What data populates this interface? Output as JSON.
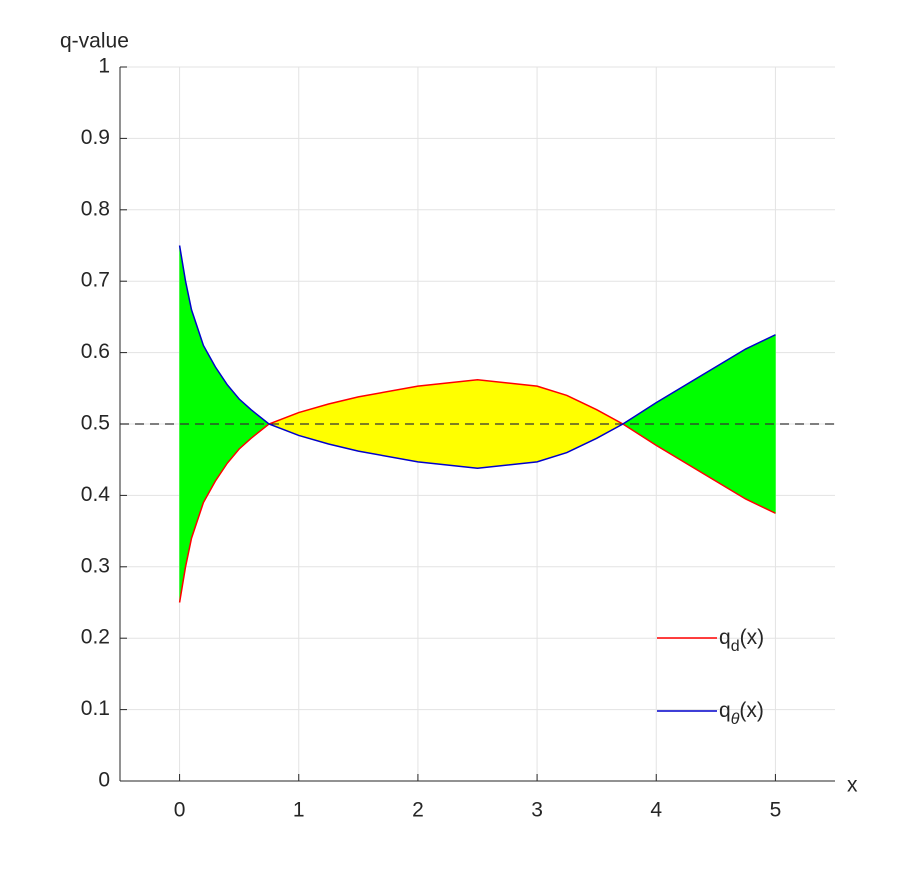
{
  "chart_data": {
    "type": "line",
    "xlabel": "x",
    "ylabel": "q-value",
    "x": [
      0,
      0.05,
      0.1,
      0.2,
      0.3,
      0.4,
      0.5,
      0.6,
      0.75,
      1,
      1.25,
      1.5,
      2,
      2.5,
      3,
      3.25,
      3.5,
      3.72,
      4,
      4.25,
      4.5,
      4.75,
      5
    ],
    "series": [
      {
        "name": {
          "base": "q",
          "sub": "d",
          "tail": "(x)"
        },
        "color": "#ff0000",
        "values": [
          0.25,
          0.3,
          0.34,
          0.39,
          0.42,
          0.445,
          0.465,
          0.48,
          0.5,
          0.516,
          0.528,
          0.538,
          0.553,
          0.562,
          0.553,
          0.54,
          0.52,
          0.5,
          0.47,
          0.445,
          0.42,
          0.395,
          0.375
        ]
      },
      {
        "name": {
          "base": "q",
          "sub": "θ",
          "tail": "(x)"
        },
        "color": "#0000cc",
        "values": [
          0.75,
          0.7,
          0.66,
          0.61,
          0.58,
          0.555,
          0.535,
          0.52,
          0.5,
          0.484,
          0.472,
          0.462,
          0.447,
          0.438,
          0.447,
          0.46,
          0.48,
          0.5,
          0.53,
          0.555,
          0.58,
          0.605,
          0.625
        ]
      }
    ],
    "fill_above_color": "#00ff00",
    "fill_below_color": "#ffff00",
    "reference_line": 0.5,
    "xlim": [
      -0.5,
      5.5
    ],
    "ylim": [
      0,
      1
    ],
    "xticks": [
      0,
      1,
      2,
      3,
      4,
      5
    ],
    "yticks": [
      0,
      0.1,
      0.2,
      0.3,
      0.4,
      0.5,
      0.6,
      0.7,
      0.8,
      0.9,
      1
    ],
    "grid": true,
    "legend": "lower right"
  }
}
